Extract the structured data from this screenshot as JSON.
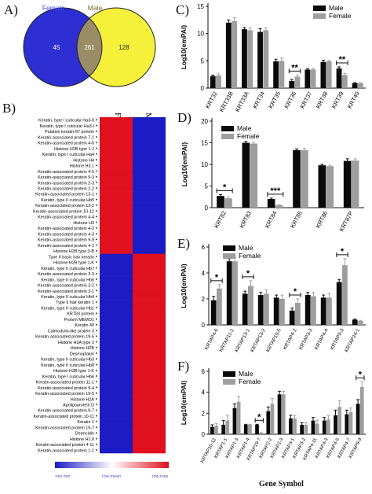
{
  "panel_labels": {
    "a": "A)",
    "b": "B)",
    "c": "C)",
    "d": "D)",
    "e": "E)",
    "f": "F)"
  },
  "venn": {
    "left_label": "Female",
    "right_label": "Male",
    "female_only": "45",
    "shared": "261",
    "male_only": "128",
    "colors": {
      "female": "#2d2fd2",
      "male": "#f5f03a",
      "overlap": "#9a8d66",
      "female_text": "#3a49ff",
      "male_text": "#7a6a24"
    }
  },
  "heatmap": {
    "col_labels": [
      "Female",
      "Male"
    ],
    "rows": [
      "Keratin, type I cuticular Ha3-II",
      "Keratin, type I cuticular Ha3-I",
      "Putative keratin-87 protein",
      "Keratin-associated protein 7-1",
      "Keratin-associated protein 4-6",
      "Histone H2B type 1-J",
      "Keratin, type I cuticular Ha4",
      "Histone H4",
      "Histone H3.1",
      "Keratin-associated protein 4-5",
      "Keratin-associated protein 9-3",
      "Keratin-associated protein 2-3",
      "Keratin-associated protein 2-2",
      "Keratin-associated protein 13-1",
      "Keratin, type II cuticular Hb5",
      "Keratin-associated protein 13-2",
      "Keratin-associated protein 10-12",
      "Keratin-associated protein 4-4",
      "Histone H3",
      "Keratin-associated protein 4-2",
      "Keratin-associated protein 4-3",
      "Keratin-associated protein 9-9",
      "Keratin-associated protein 4-1",
      "Histone H2B type 3-B",
      "Type II basic hair keratin",
      "Histone H2B type 1-K",
      "Keratin, type II cuticular Hb7",
      "Keratin-associated protein 3-3",
      "Keratin, type II cuticular Hb6",
      "Keratin-associated protein 3-2",
      "Keratin-associated protein 3-1",
      "Keratin, type II cuticular Hb4",
      "Type II hair keratin 1",
      "Keratin, type II cuticular Hb1",
      "KRT83 protein",
      "Protein MEMO1",
      "Keratin 40",
      "Calmodulin-like protein 3",
      "Keratin-associated protein 19-5",
      "Histone H2A type 2",
      "Histone H2B",
      "Desmoplakin",
      "Keratin, type II cuticular Hb3",
      "Keratin, type II cuticular Hb8",
      "Histone H2B type 1-K",
      "Keratin, type I cuticular Hb6",
      "Keratin-associated protein 11-1",
      "Keratin-associated protein 9-4",
      "Keratin-associated protein 19-5",
      "Histone H2A",
      "Apolipoprotein D",
      "Keratin-associated protein 9-7",
      "Keratin-associated protein 10-11",
      "Keratin 1",
      "Keratin-associated protein 19-7",
      "Dermcidin",
      "Histone H1.0",
      "Keratin-associated protein 4-11",
      "Keratin-associated protein 1-1"
    ],
    "female_high_count": 24,
    "scale_labels": [
      "row min",
      "row mean",
      "row max"
    ],
    "colors": {
      "low": "#1c1cc4",
      "high": "#e0101e"
    }
  },
  "legend": {
    "male": "Male",
    "female": "Female",
    "male_color": "#0a0a0a",
    "female_color": "#9e9e9e"
  },
  "axis_title": "Log10(emPAI)",
  "gene_symbol": "Gene Symbol",
  "chart_data": [
    {
      "id": "C",
      "type": "bar",
      "categories": [
        "KRT32",
        "KRT33B",
        "KRT33A",
        "KRT34",
        "KRT35",
        "KRT36",
        "KRT37",
        "KRT38",
        "KRT39",
        "KRT40"
      ],
      "series": [
        {
          "name": "Male",
          "values": [
            2.2,
            12.0,
            10.8,
            10.3,
            4.9,
            1.3,
            3.4,
            4.8,
            3.6,
            0.9
          ],
          "errors": [
            0.2,
            0.5,
            0.3,
            0.6,
            0.4,
            0.3,
            0.2,
            0.3,
            0.3,
            0.1
          ]
        },
        {
          "name": "Female",
          "values": [
            2.3,
            12.3,
            10.6,
            10.6,
            5.0,
            2.1,
            3.4,
            4.9,
            2.4,
            0.9
          ],
          "errors": [
            0.3,
            0.6,
            0.4,
            0.5,
            0.5,
            0.3,
            0.2,
            0.2,
            0.3,
            0.1
          ]
        }
      ],
      "ylim": [
        0,
        15
      ],
      "yticks": [
        "0",
        "5",
        "10",
        "15"
      ],
      "ylabel": "Log10(emPAI)",
      "annotations": [
        {
          "category": "KRT36",
          "text": "**"
        },
        {
          "category": "KRT39",
          "text": "**"
        }
      ],
      "legend": "top-right"
    },
    {
      "id": "D",
      "type": "bar",
      "categories": [
        "KRT82",
        "KRT83",
        "KRT84",
        "KRT85",
        "KRT86",
        "KRT87P"
      ],
      "series": [
        {
          "name": "Male",
          "values": [
            2.7,
            15.0,
            2.0,
            13.3,
            9.8,
            10.8
          ],
          "errors": [
            0.3,
            0.3,
            0.2,
            0.3,
            0.2,
            0.5
          ]
        },
        {
          "name": "Female",
          "values": [
            2.2,
            14.8,
            0.6,
            13.3,
            9.6,
            10.9
          ],
          "errors": [
            0.3,
            0.3,
            0.1,
            0.4,
            0.2,
            0.4
          ]
        }
      ],
      "ylim": [
        0,
        20
      ],
      "yticks": [
        "0",
        "5",
        "10",
        "15",
        "20"
      ],
      "ylabel": "Log10(emPAI)",
      "annotations": [
        {
          "category": "KRT82",
          "text": "*"
        },
        {
          "category": "KRT84",
          "text": "***"
        }
      ],
      "legend": "top-left"
    },
    {
      "id": "E",
      "type": "bar",
      "categories": [
        "KRTAP4-6",
        "KRTAP11-1",
        "KRTAP13-1",
        "KRTAP13-2",
        "KRTAP10-5",
        "KRTAP4-2",
        "KRTAP3-3",
        "KRTAP4-4",
        "KRTAP9-3",
        "KRTAP24-1"
      ],
      "series": [
        {
          "name": "Male",
          "values": [
            1.9,
            4.9,
            2.4,
            2.3,
            2.1,
            1.1,
            2.3,
            2.1,
            3.3,
            0.4
          ],
          "errors": [
            0.3,
            0.2,
            0.2,
            0.2,
            0.2,
            0.2,
            0.2,
            0.2,
            0.2,
            0.05
          ]
        },
        {
          "name": "Female",
          "values": [
            2.8,
            4.9,
            3.0,
            2.4,
            2.0,
            1.7,
            2.2,
            2.1,
            4.6,
            0.3
          ],
          "errors": [
            0.3,
            0.3,
            0.4,
            0.3,
            0.3,
            0.3,
            0.3,
            0.3,
            0.5,
            0.05
          ]
        }
      ],
      "ylim": [
        0,
        6
      ],
      "yticks": [
        "0",
        "2",
        "4",
        "6"
      ],
      "ylabel": "Log10(emPAI)",
      "annotations": [
        {
          "category": "KRTAP4-6",
          "text": "*"
        },
        {
          "category": "KRTAP13-1",
          "text": "*"
        },
        {
          "category": "KRTAP4-2",
          "text": "*"
        },
        {
          "category": "KRTAP9-3",
          "text": "*"
        }
      ],
      "legend": "top-left"
    },
    {
      "id": "F",
      "type": "bar",
      "categories": [
        "KRTAP10-12",
        "KRTAP1-1",
        "KRTAP1-3",
        "KRTAP1-4",
        "KRTAP19-7",
        "KRTAP2-2",
        "KRTAP2-3",
        "KRTAP3-1",
        "KRTAP3-2",
        "KRTAP4-11",
        "KRTAP4-3",
        "KRTAP4-5",
        "KRTAP4-7",
        "KRTAP9-9"
      ],
      "series": [
        {
          "name": "Male",
          "values": [
            0.7,
            0.9,
            2.5,
            0.9,
            0.9,
            2.2,
            3.8,
            1.5,
            0.9,
            1.3,
            1.3,
            1.8,
            1.9,
            2.9
          ],
          "errors": [
            0.2,
            0.4,
            0.4,
            0.05,
            0.05,
            0.4,
            0.3,
            0.3,
            0.2,
            0.3,
            0.3,
            0.5,
            0.4,
            0.4
          ]
        },
        {
          "name": "Female",
          "values": [
            0.8,
            1.3,
            3.1,
            0.9,
            0.1,
            2.9,
            3.8,
            1.5,
            0.9,
            1.0,
            1.4,
            2.6,
            2.1,
            4.5
          ],
          "errors": [
            0.2,
            0.5,
            0.5,
            0.05,
            0.05,
            0.5,
            0.3,
            0.3,
            0.2,
            0.3,
            0.4,
            0.6,
            0.4,
            0.5
          ]
        }
      ],
      "ylim": [
        0,
        6
      ],
      "yticks": [
        "0",
        "2",
        "4",
        "6"
      ],
      "ylabel": "Log10(emPAI)",
      "annotations": [
        {
          "category": "KRTAP19-7",
          "text": "*"
        },
        {
          "category": "KRTAP9-9",
          "text": "*"
        }
      ],
      "legend": "top-left"
    }
  ]
}
